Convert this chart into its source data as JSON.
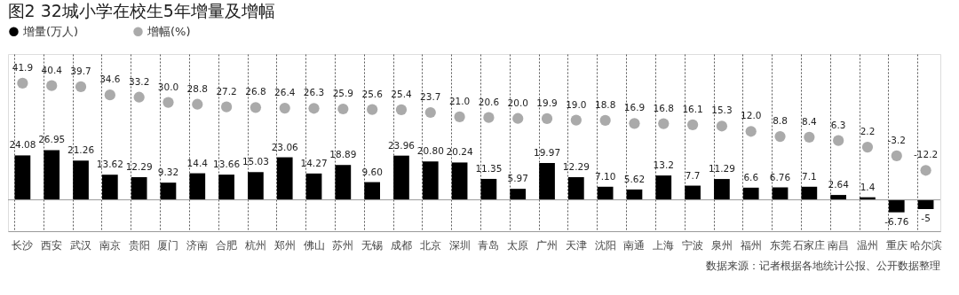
{
  "chart_data": {
    "type": "bar",
    "title": "图2 32城小学在校生5年增量及增幅",
    "categories": [
      "长沙",
      "西安",
      "武汉",
      "南京",
      "贵阳",
      "厦门",
      "济南",
      "合肥",
      "杭州",
      "郑州",
      "佛山",
      "苏州",
      "无锡",
      "成都",
      "北京",
      "深圳",
      "青岛",
      "太原",
      "广州",
      "天津",
      "沈阳",
      "南通",
      "上海",
      "宁波",
      "泉州",
      "福州",
      "东莞",
      "石家庄",
      "南昌",
      "温州",
      "重庆",
      "哈尔滨"
    ],
    "series": [
      {
        "name": "增量(万人)",
        "color": "#000000",
        "values": [
          24.08,
          26.95,
          21.26,
          13.62,
          12.29,
          9.32,
          14.4,
          13.66,
          15.03,
          23.06,
          14.27,
          18.89,
          9.6,
          23.96,
          20.8,
          20.24,
          11.35,
          5.97,
          19.97,
          12.29,
          7.1,
          5.62,
          13.2,
          7.7,
          11.29,
          6.6,
          6.76,
          7.1,
          2.64,
          1.4,
          -6.76,
          -5
        ],
        "value_labels": [
          "24.08",
          "26.95",
          "21.26",
          "13.62",
          "12.29",
          "9.32",
          "14.4",
          "13.66",
          "15.03",
          "23.06",
          "14.27",
          "18.89",
          "9.60",
          "23.96",
          "20.80",
          "20.24",
          "11.35",
          "5.97",
          "19.97",
          "12.29",
          "7.10",
          "5.62",
          "13.2",
          "7.7",
          "11.29",
          "6.6",
          "6.76",
          "7.1",
          "2.64",
          "1.4",
          "-6.76",
          "-5"
        ]
      },
      {
        "name": "增幅(%)",
        "type": "scatter",
        "axis": "y2",
        "color": "#aaaaaa",
        "values": [
          41.9,
          40.4,
          39.7,
          34.6,
          33.2,
          30.0,
          28.8,
          27.2,
          26.8,
          26.4,
          26.3,
          25.9,
          25.6,
          25.4,
          23.7,
          21.0,
          20.6,
          20.0,
          19.9,
          19.0,
          18.8,
          16.9,
          16.8,
          16.1,
          15.3,
          12.0,
          8.8,
          8.4,
          6.3,
          2.2,
          -3.2,
          -12.2
        ],
        "value_labels": [
          "41.9",
          "40.4",
          "39.7",
          "34.6",
          "33.2",
          "30.0",
          "28.8",
          "27.2",
          "26.8",
          "26.4",
          "26.3",
          "25.9",
          "25.6",
          "25.4",
          "23.7",
          "21.0",
          "20.6",
          "20.0",
          "19.9",
          "19.0",
          "18.8",
          "16.9",
          "16.8",
          "16.1",
          "15.3",
          "12.0",
          "8.8",
          "8.4",
          "6.3",
          "2.2",
          "-3.2",
          "-12.2"
        ]
      }
    ],
    "ylim": [
      -17,
      79
    ],
    "y2lim": [
      -50,
      60
    ],
    "tick_labels": "x",
    "grid": "x",
    "legend": "top left",
    "ref_lines": [
      {
        "axis": "y",
        "value": 0
      }
    ],
    "annotations": [
      "数据来源：记者根据各地统计公报、公开数据整理"
    ]
  }
}
